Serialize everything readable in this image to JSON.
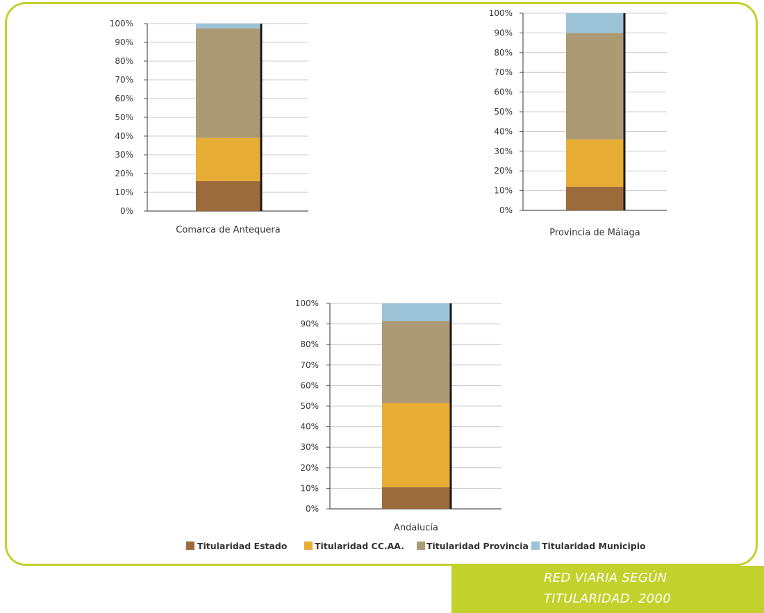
{
  "colors": {
    "estado": "#9b6b3b",
    "ccaa": "#e8ad35",
    "provincia": "#ac9a75",
    "municipio": "#9dc3d8",
    "accent": "#c2d12b"
  },
  "caption": {
    "line1": "RED VIARIA SEGÚN",
    "line2": "TITULARIDAD. 2000"
  },
  "legend": [
    {
      "label": "Titularidad Estado",
      "color_key": "estado"
    },
    {
      "label": "Titularidad CC.AA.",
      "color_key": "ccaa"
    },
    {
      "label": "Titularidad Provincia",
      "color_key": "provincia"
    },
    {
      "label": "Titularidad Municipio",
      "color_key": "municipio"
    }
  ],
  "chart_data": [
    {
      "type": "bar",
      "stacked": true,
      "categories": [
        "Comarca de Antequera"
      ],
      "ylim": [
        0,
        100
      ],
      "yticks": [
        "0%",
        "10%",
        "20%",
        "30%",
        "40%",
        "50%",
        "60%",
        "70%",
        "80%",
        "90%",
        "100%"
      ],
      "grid": true,
      "series": [
        {
          "name": "Titularidad Estado",
          "values": [
            16
          ]
        },
        {
          "name": "Titularidad CC.AA.",
          "values": [
            23
          ]
        },
        {
          "name": "Titularidad Provincia",
          "values": [
            58.5
          ]
        },
        {
          "name": "Titularidad Municipio",
          "values": [
            2.5
          ]
        }
      ]
    },
    {
      "type": "bar",
      "stacked": true,
      "categories": [
        "Provincia de Málaga"
      ],
      "ylim": [
        0,
        100
      ],
      "yticks": [
        "0%",
        "10%",
        "20%",
        "30%",
        "40%",
        "50%",
        "60%",
        "70%",
        "80%",
        "90%",
        "100%"
      ],
      "grid": true,
      "series": [
        {
          "name": "Titularidad Estado",
          "values": [
            12
          ]
        },
        {
          "name": "Titularidad CC.AA.",
          "values": [
            24
          ]
        },
        {
          "name": "Titularidad Provincia",
          "values": [
            54
          ]
        },
        {
          "name": "Titularidad Municipio",
          "values": [
            10
          ]
        }
      ]
    },
    {
      "type": "bar",
      "stacked": true,
      "categories": [
        "Andalucía"
      ],
      "ylim": [
        0,
        100
      ],
      "yticks": [
        "0%",
        "10%",
        "20%",
        "30%",
        "40%",
        "50%",
        "60%",
        "70%",
        "80%",
        "90%",
        "100%"
      ],
      "grid": true,
      "series": [
        {
          "name": "Titularidad Estado",
          "values": [
            10.5
          ]
        },
        {
          "name": "Titularidad CC.AA.",
          "values": [
            41
          ]
        },
        {
          "name": "Titularidad Provincia",
          "values": [
            40
          ]
        },
        {
          "name": "Titularidad Municipio",
          "values": [
            8.5
          ]
        }
      ]
    }
  ]
}
